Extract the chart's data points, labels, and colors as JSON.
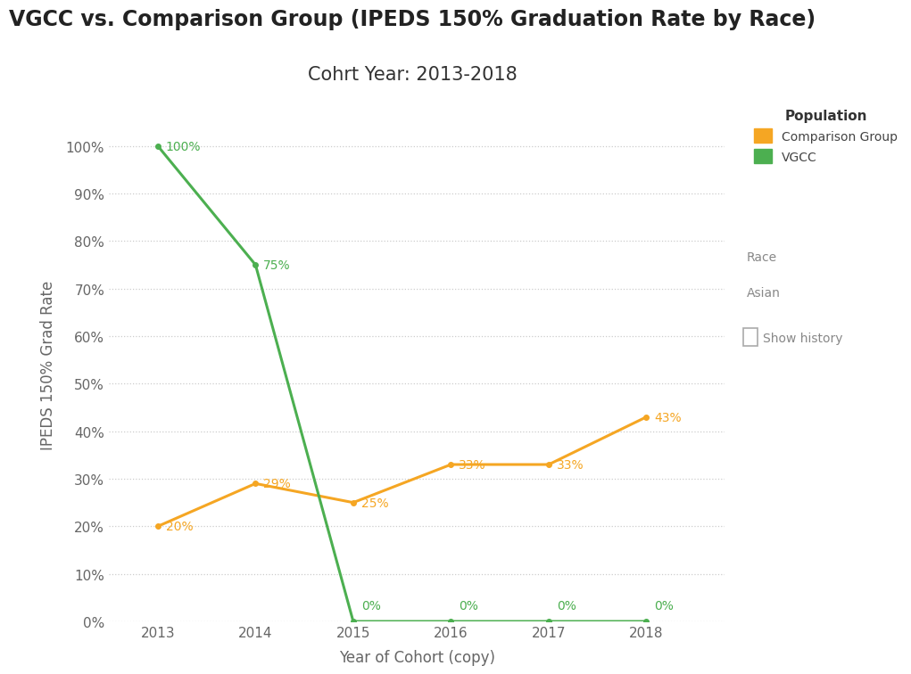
{
  "title": "VGCC vs. Comparison Group (IPEDS 150% Graduation Rate by Race)",
  "subtitle": "Cohrt Year: 2013-2018",
  "xlabel": "Year of Cohort (copy)",
  "ylabel": "IPEDS 150% Grad Rate",
  "years": [
    2013,
    2014,
    2015,
    2016,
    2017,
    2018
  ],
  "comparison_values": [
    0.2,
    0.29,
    0.25,
    0.33,
    0.33,
    0.43
  ],
  "vgcc_values": [
    1.0,
    0.75,
    0.0,
    0.0,
    0.0,
    0.0
  ],
  "comparison_color": "#F5A623",
  "vgcc_color": "#4CAF50",
  "comparison_label": "Comparison Group",
  "vgcc_label": "VGCC",
  "legend_title": "Population",
  "race_label": "Race",
  "race_value": "Asian",
  "show_history_label": "Show history",
  "ylim": [
    0,
    1.08
  ],
  "yticks": [
    0.0,
    0.1,
    0.2,
    0.3,
    0.4,
    0.5,
    0.6,
    0.7,
    0.8,
    0.9,
    1.0
  ],
  "comparison_labels": [
    "20%",
    "29%",
    "25%",
    "33%",
    "33%",
    "43%"
  ],
  "vgcc_labels": [
    "100%",
    "75%",
    "0%",
    "0%",
    "0%",
    "0%"
  ],
  "background_color": "#ffffff",
  "grid_color": "#cccccc",
  "title_fontsize": 17,
  "subtitle_fontsize": 15,
  "label_fontsize": 12,
  "tick_fontsize": 11,
  "annotation_fontsize": 10,
  "line_width": 2.2
}
